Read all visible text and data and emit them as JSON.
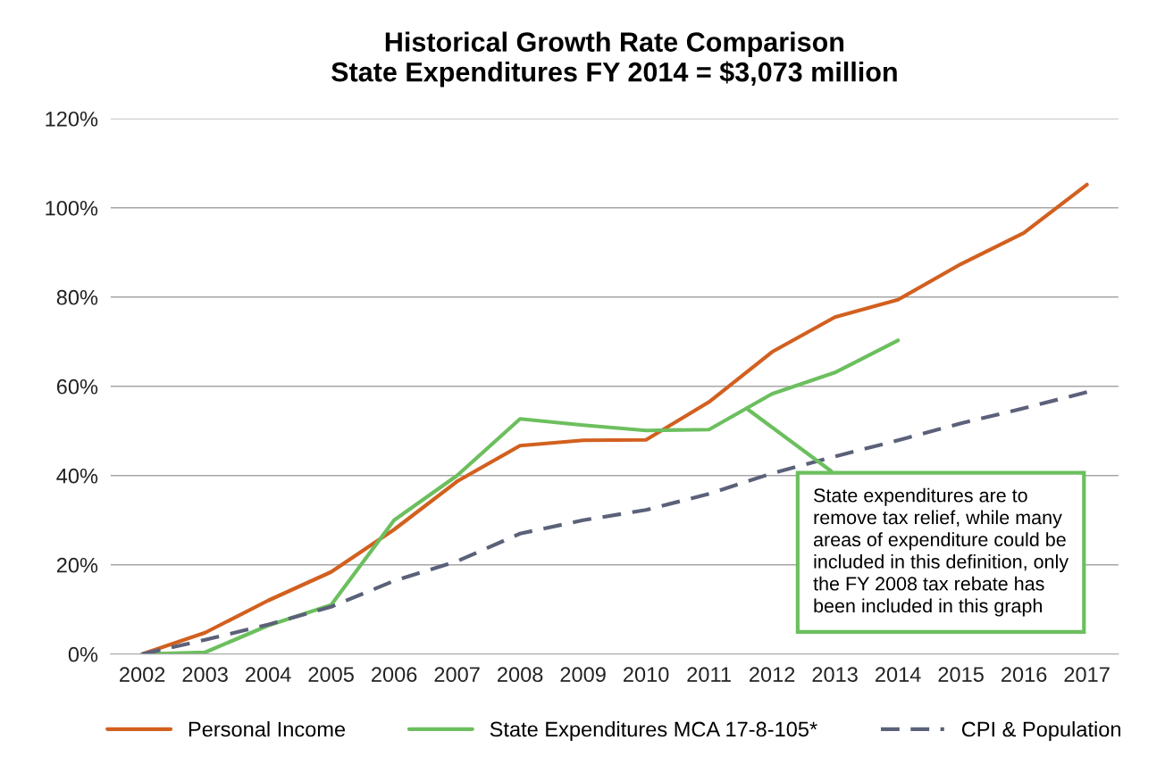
{
  "chart_data": {
    "type": "line",
    "title": "Historical Growth Rate Comparison\nState Expenditures FY 2014 = $3,073 million",
    "x": [
      2002,
      2003,
      2004,
      2005,
      2006,
      2007,
      2008,
      2009,
      2010,
      2011,
      2012,
      2013,
      2014,
      2015,
      2016,
      2017
    ],
    "series": [
      {
        "name": "Personal Income",
        "color": "#d2601f",
        "line_style": "solid",
        "values": [
          0,
          4.8,
          12,
          18.4,
          27.9,
          38.7,
          46.7,
          47.9,
          48,
          56.5,
          67.7,
          75.5,
          79.4,
          87.4,
          94.4,
          105.2
        ]
      },
      {
        "name": "State Expenditures MCA 17-8-105*",
        "color": "#6cbf5e",
        "line_style": "solid",
        "values": [
          0,
          0.4,
          6.4,
          11,
          30,
          40,
          52.7,
          51.3,
          50.1,
          50.3,
          58.3,
          63.1,
          70.3,
          null,
          null,
          null
        ]
      },
      {
        "name": "CPI & Population",
        "color": "#5b6179",
        "line_style": "dashed",
        "values": [
          0,
          3.2,
          6.6,
          10.6,
          16.4,
          20.8,
          27,
          30,
          32.3,
          35.9,
          40.5,
          44.3,
          47.9,
          51.7,
          55.1,
          58.7
        ]
      }
    ],
    "xlim": [
      2001.5,
      2017.5
    ],
    "xticks": [
      2002,
      2003,
      2004,
      2005,
      2006,
      2007,
      2008,
      2009,
      2010,
      2011,
      2012,
      2013,
      2014,
      2015,
      2016,
      2017
    ],
    "ylim": [
      0,
      120
    ],
    "yticks": [
      {
        "value": 0,
        "label": "0%"
      },
      {
        "value": 20,
        "label": "20%"
      },
      {
        "value": 40,
        "label": "40%"
      },
      {
        "value": 60,
        "label": "60%"
      },
      {
        "value": 80,
        "label": "80%"
      },
      {
        "value": 100,
        "label": "100%"
      },
      {
        "value": 120,
        "label": "120%"
      }
    ],
    "grid": "y",
    "legend": "bottom",
    "marker": "none",
    "annotations": [
      {
        "text": "State expenditures are to\nremove tax relief, while many\nareas of expenditure could be\nincluded in this definition, only\nthe FY 2008 tax rebate has\nbeen included in this graph",
        "x": 2011.6,
        "y": 55
      }
    ]
  }
}
